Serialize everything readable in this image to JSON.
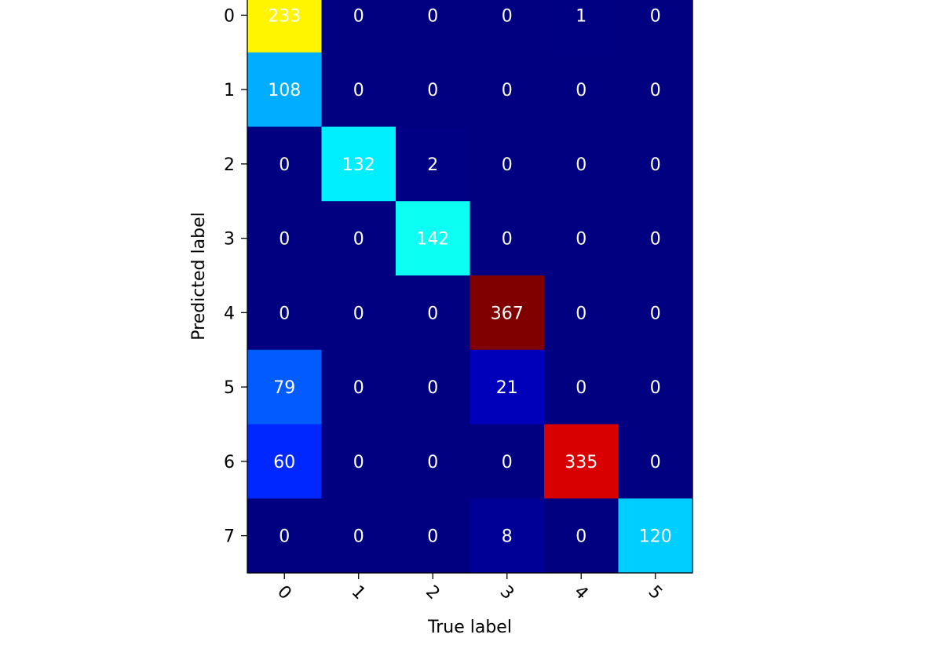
{
  "chart_data": {
    "type": "heatmap",
    "title": "",
    "xlabel": "True label",
    "ylabel": "Predicted label",
    "x_ticks": [
      "0",
      "1",
      "2",
      "3",
      "4",
      "5"
    ],
    "y_ticks": [
      "0",
      "1",
      "2",
      "3",
      "4",
      "5",
      "6",
      "7"
    ],
    "colormap": "jet",
    "value_range": [
      0,
      367
    ],
    "matrix": [
      [
        233,
        0,
        0,
        0,
        1,
        0
      ],
      [
        108,
        0,
        0,
        0,
        0,
        0
      ],
      [
        0,
        132,
        2,
        0,
        0,
        0
      ],
      [
        0,
        0,
        142,
        0,
        0,
        0
      ],
      [
        0,
        0,
        0,
        367,
        0,
        0
      ],
      [
        79,
        0,
        0,
        21,
        0,
        0
      ],
      [
        60,
        0,
        0,
        0,
        335,
        0
      ],
      [
        0,
        0,
        0,
        8,
        0,
        120
      ]
    ]
  }
}
